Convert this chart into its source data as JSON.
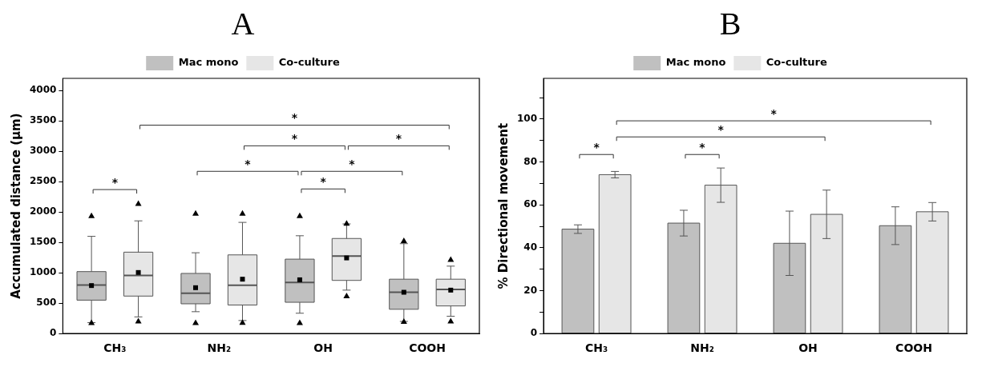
{
  "chart_data": [
    {
      "type": "box",
      "title": "A",
      "ylabel": "Accumulated distance (μm)",
      "categories": [
        "CH₃",
        "NH₂",
        "OH",
        "COOH"
      ],
      "series": [
        {
          "name": "Mac mono",
          "color": "#c0c0c0",
          "boxes": [
            {
              "low": 180,
              "q1": 550,
              "median": 800,
              "q3": 1020,
              "high": 1600,
              "mean": 790,
              "outliers": [
                1940,
                180
              ]
            },
            {
              "low": 360,
              "q1": 490,
              "median": 665,
              "q3": 990,
              "high": 1330,
              "mean": 755,
              "outliers": [
                1980,
                180
              ]
            },
            {
              "low": 335,
              "q1": 515,
              "median": 840,
              "q3": 1225,
              "high": 1610,
              "mean": 885,
              "outliers": [
                1940,
                180
              ]
            },
            {
              "low": 200,
              "q1": 400,
              "median": 680,
              "q3": 895,
              "high": 1480,
              "mean": 680,
              "outliers": [
                1530,
                200
              ]
            }
          ]
        },
        {
          "name": "Co-culture",
          "color": "#e6e6e6",
          "boxes": [
            {
              "low": 275,
              "q1": 617,
              "median": 955,
              "q3": 1340,
              "high": 1855,
              "mean": 1005,
              "outliers": [
                2140,
                205
              ]
            },
            {
              "low": 215,
              "q1": 470,
              "median": 795,
              "q3": 1295,
              "high": 1830,
              "mean": 895,
              "outliers": [
                1980,
                185
              ]
            },
            {
              "low": 715,
              "q1": 875,
              "median": 1275,
              "q3": 1565,
              "high": 1805,
              "mean": 1245,
              "outliers": [
                1815,
                620
              ]
            },
            {
              "low": 285,
              "q1": 455,
              "median": 725,
              "q3": 895,
              "high": 1110,
              "mean": 715,
              "outliers": [
                1220,
                205
              ]
            }
          ]
        }
      ],
      "ylim": [
        0,
        4200
      ],
      "yticks": [
        0,
        500,
        1000,
        1500,
        2000,
        2500,
        3000,
        3500,
        4000
      ],
      "legend": "top",
      "grid": false,
      "annotations": [
        "*",
        "*",
        "*",
        "*",
        "*",
        "*",
        "*"
      ]
    },
    {
      "type": "bar",
      "title": "B",
      "ylabel": "% Directional movement",
      "categories": [
        "CH₃",
        "NH₂",
        "OH",
        "COOH"
      ],
      "series": [
        {
          "name": "Mac mono",
          "color": "#c0c0c0",
          "values": [
            48.7,
            51.5,
            42.1,
            50.3
          ],
          "errors": [
            2,
            6,
            15,
            8.8
          ]
        },
        {
          "name": "Co-culture",
          "color": "#e6e6e6",
          "values": [
            74.1,
            69.2,
            55.6,
            56.8
          ],
          "errors": [
            1.5,
            8,
            11.3,
            4.3
          ]
        }
      ],
      "ylim": [
        0,
        119
      ],
      "yticks": [
        0,
        {
          "value": 10,
          "label": null
        },
        20,
        {
          "value": 30,
          "label": null
        },
        40,
        {
          "value": 50,
          "label": null
        },
        60,
        {
          "value": 70,
          "label": null
        },
        80,
        {
          "value": 90,
          "label": null
        },
        100,
        {
          "value": 110,
          "label": null
        }
      ],
      "legend": "top",
      "grid": false,
      "annotations": [
        "*",
        "*",
        "*",
        "*"
      ]
    }
  ]
}
